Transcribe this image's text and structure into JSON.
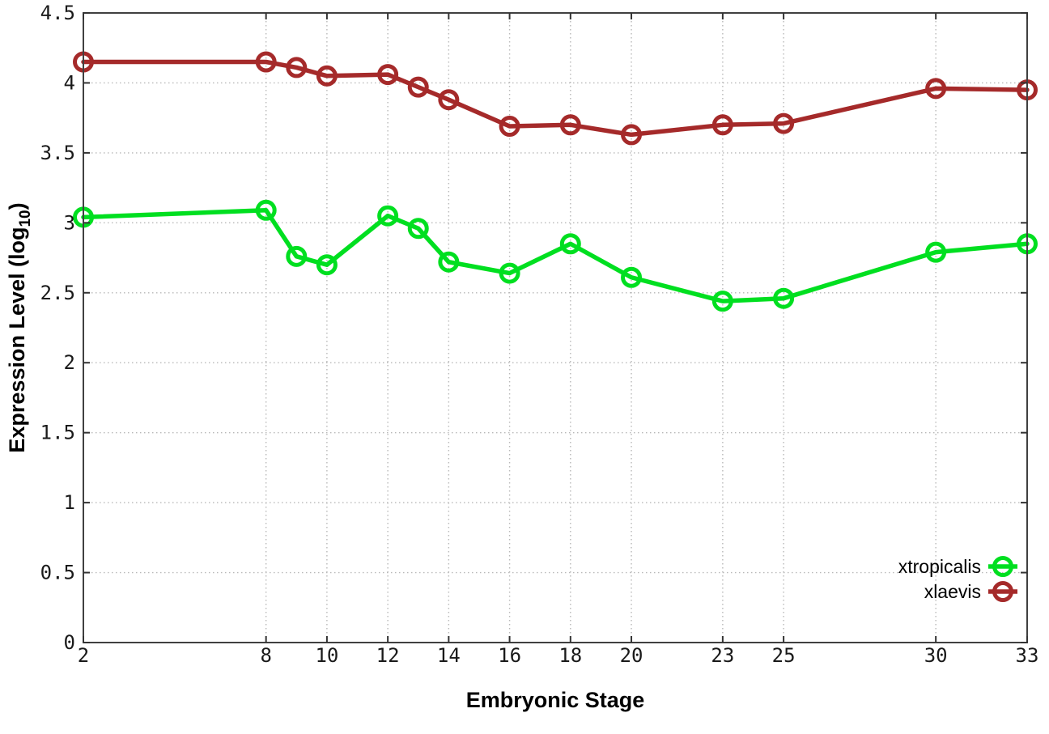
{
  "chart_data": {
    "type": "line",
    "title": "",
    "xlabel": "Embryonic Stage",
    "ylabel": "Expression Level (log10)",
    "ylabel_parts": {
      "main": "Expression Level (log",
      "sub": "10",
      "close": ")"
    },
    "x": [
      2,
      8,
      9,
      10,
      12,
      13,
      14,
      16,
      18,
      20,
      23,
      25,
      30,
      33
    ],
    "series": [
      {
        "name": "xtropicalis",
        "color": "#00df20",
        "values": [
          3.04,
          3.09,
          2.76,
          2.7,
          3.05,
          2.96,
          2.72,
          2.64,
          2.85,
          2.61,
          2.44,
          2.46,
          2.79,
          2.85
        ]
      },
      {
        "name": "xlaevis",
        "color": "#a52a2a",
        "values": [
          4.15,
          4.15,
          4.11,
          4.05,
          4.06,
          3.97,
          3.88,
          3.69,
          3.7,
          3.63,
          3.7,
          3.71,
          3.96,
          3.95
        ]
      }
    ],
    "xlim": [
      2,
      33
    ],
    "ylim": [
      0,
      4.5
    ],
    "xticks": [
      2,
      8,
      10,
      12,
      14,
      16,
      18,
      20,
      23,
      25,
      30,
      33
    ],
    "xtick_labels": [
      "2",
      "8",
      "10",
      "12",
      "14",
      "16",
      "18",
      "20",
      "23",
      "25",
      "30",
      "33"
    ],
    "yticks": [
      0,
      0.5,
      1,
      1.5,
      2,
      2.5,
      3,
      3.5,
      4,
      4.5
    ],
    "ytick_labels": [
      "0",
      "0.5",
      "1",
      "1.5",
      "2",
      "2.5",
      "3",
      "3.5",
      "4",
      "4.5"
    ],
    "grid": true,
    "legend_position": "bottom-right",
    "colors": {
      "background": "#ffffff",
      "border": "#404040",
      "grid": "#b8b8b8",
      "tick": "#333333",
      "tick_label": "#1a1a1a"
    }
  }
}
